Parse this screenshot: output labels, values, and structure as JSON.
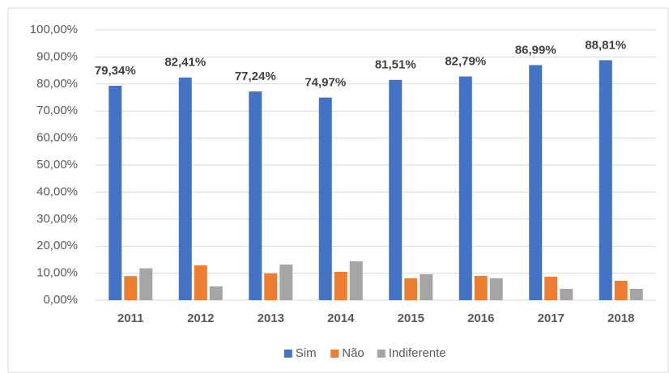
{
  "chart_data": {
    "type": "bar",
    "categories": [
      "2011",
      "2012",
      "2013",
      "2014",
      "2015",
      "2016",
      "2017",
      "2018"
    ],
    "series": [
      {
        "name": "Sim",
        "color": "#4472c4",
        "values": [
          79.34,
          82.41,
          77.24,
          74.97,
          81.51,
          82.79,
          86.99,
          88.81
        ],
        "value_labels": [
          "79,34%",
          "82,41%",
          "77,24%",
          "74,97%",
          "81,51%",
          "82,79%",
          "86,99%",
          "88,81%"
        ]
      },
      {
        "name": "Não",
        "color": "#ed7d31",
        "values": [
          8.9,
          12.9,
          9.9,
          10.5,
          8.1,
          9.0,
          8.7,
          7.2
        ]
      },
      {
        "name": "Indiferente",
        "color": "#a5a5a5",
        "values": [
          11.8,
          5.1,
          13.2,
          14.4,
          9.6,
          8.1,
          4.2,
          4.2
        ]
      }
    ],
    "ylim": [
      0,
      100
    ],
    "yticks": [
      {
        "value": 0,
        "label": "0,00%"
      },
      {
        "value": 10,
        "label": "10,00%"
      },
      {
        "value": 20,
        "label": "20,00%"
      },
      {
        "value": 30,
        "label": "30,00%"
      },
      {
        "value": 40,
        "label": "40,00%"
      },
      {
        "value": 50,
        "label": "50,00%"
      },
      {
        "value": 60,
        "label": "60,00%"
      },
      {
        "value": 70,
        "label": "70,00%"
      },
      {
        "value": 80,
        "label": "80,00%"
      },
      {
        "value": 90,
        "label": "90,00%"
      },
      {
        "value": 100,
        "label": "100,00%"
      }
    ],
    "grid": true,
    "legend": "bottom"
  }
}
